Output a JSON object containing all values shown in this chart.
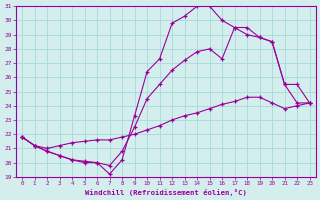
{
  "xlabel": "Windchill (Refroidissement éolien,°C)",
  "line_color": "#990099",
  "bg_color": "#d4eeee",
  "grid_color": "#aadddd",
  "xlim": [
    -0.5,
    23.5
  ],
  "ylim": [
    19,
    31
  ],
  "xticks": [
    0,
    1,
    2,
    3,
    4,
    5,
    6,
    7,
    8,
    9,
    10,
    11,
    12,
    13,
    14,
    15,
    16,
    17,
    18,
    19,
    20,
    21,
    22,
    23
  ],
  "yticks": [
    19,
    20,
    21,
    22,
    23,
    24,
    25,
    26,
    27,
    28,
    29,
    30,
    31
  ],
  "curve1_x": [
    0,
    1,
    2,
    3,
    4,
    5,
    6,
    7,
    8,
    9,
    10,
    11,
    12,
    13,
    14,
    15,
    16,
    17,
    18,
    19,
    20,
    21,
    22,
    23
  ],
  "curve1_y": [
    21.8,
    21.2,
    20.8,
    20.5,
    20.2,
    20.1,
    20.0,
    19.2,
    20.2,
    23.3,
    26.4,
    27.3,
    29.8,
    30.3,
    31.0,
    31.0,
    30.0,
    29.5,
    29.0,
    28.8,
    28.5,
    25.5,
    24.2,
    24.2
  ],
  "curve2_x": [
    0,
    1,
    2,
    3,
    4,
    5,
    6,
    7,
    8,
    9,
    10,
    11,
    12,
    13,
    14,
    15,
    16,
    17,
    18,
    19,
    20,
    21,
    22,
    23
  ],
  "curve2_y": [
    21.8,
    21.2,
    21.0,
    21.2,
    21.4,
    21.5,
    21.6,
    21.6,
    21.8,
    22.0,
    22.3,
    22.6,
    23.0,
    23.3,
    23.5,
    23.8,
    24.1,
    24.3,
    24.6,
    24.6,
    24.2,
    23.8,
    24.0,
    24.2
  ],
  "curve3_x": [
    0,
    1,
    2,
    3,
    4,
    5,
    6,
    7,
    8,
    9,
    10,
    11,
    12,
    13,
    14,
    15,
    16,
    17,
    18,
    19,
    20,
    21,
    22,
    23
  ],
  "curve3_y": [
    21.8,
    21.2,
    20.8,
    20.5,
    20.2,
    20.0,
    20.0,
    19.8,
    20.8,
    22.5,
    24.5,
    25.5,
    26.5,
    27.2,
    27.8,
    28.0,
    27.3,
    29.5,
    29.5,
    28.8,
    28.5,
    25.5,
    25.5,
    24.2
  ]
}
